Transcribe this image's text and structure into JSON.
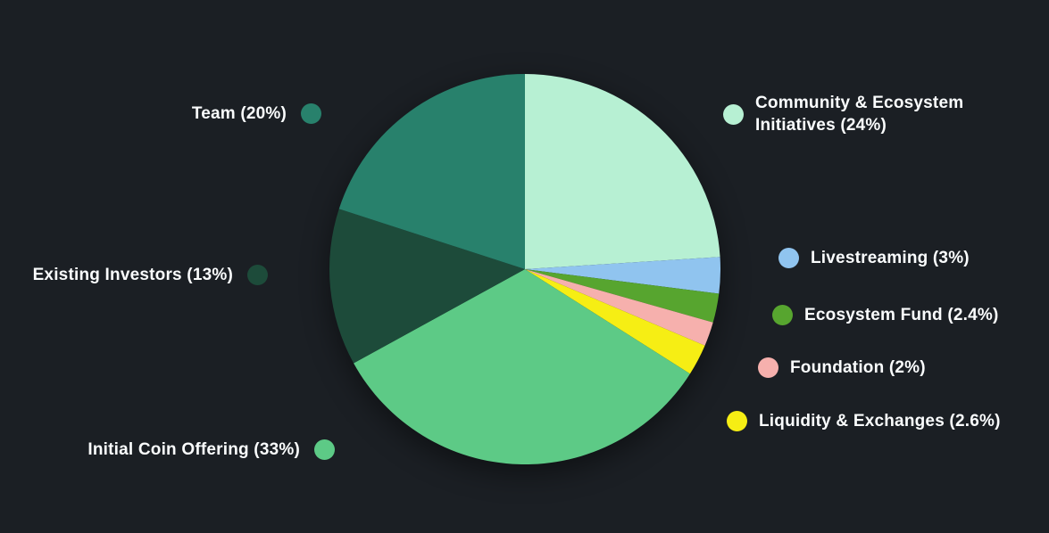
{
  "chart_data": {
    "type": "pie",
    "title": "",
    "background": "#1b1f24",
    "text_color": "#fafcfd",
    "legend_position": "sides",
    "start_angle": "12-oclock-clockwise",
    "slices": [
      {
        "id": "community-ecosystem-initiatives",
        "label": "Community & Ecosystem Initiatives",
        "percent": 24,
        "display": "Community & Ecosystem Initiatives (24%)",
        "color": "#b7f0d3"
      },
      {
        "id": "livestreaming",
        "label": "Livestreaming",
        "percent": 3,
        "display": "Livestreaming (3%)",
        "color": "#90c4ef"
      },
      {
        "id": "ecosystem-fund",
        "label": "Ecosystem Fund",
        "percent": 2.4,
        "display": "Ecosystem Fund (2.4%)",
        "color": "#57a52f"
      },
      {
        "id": "foundation",
        "label": "Foundation",
        "percent": 2,
        "display": "Foundation (2%)",
        "color": "#f6b0ad"
      },
      {
        "id": "liquidity-exchanges",
        "label": "Liquidity & Exchanges",
        "percent": 2.6,
        "display": "Liquidity & Exchanges (2.6%)",
        "color": "#f6ee14"
      },
      {
        "id": "initial-coin-offering",
        "label": "Initial Coin Offering",
        "percent": 33,
        "display": "Initial Coin Offering (33%)",
        "color": "#5dca86"
      },
      {
        "id": "existing-investors",
        "label": "Existing Investors",
        "percent": 13,
        "display": "Existing Investors (13%)",
        "color": "#1d4b3a"
      },
      {
        "id": "team",
        "label": "Team",
        "percent": 20,
        "display": "Team (20%)",
        "color": "#28816c"
      }
    ]
  }
}
